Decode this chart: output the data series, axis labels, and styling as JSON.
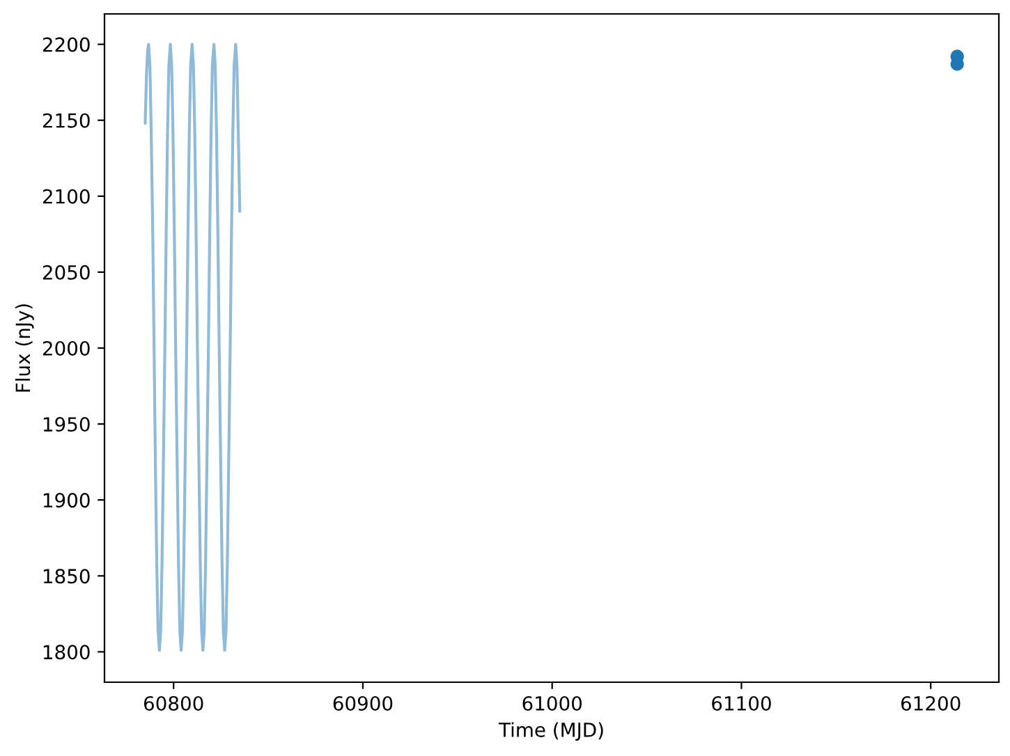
{
  "chart_data": {
    "type": "line",
    "xlabel": "Time (MJD)",
    "ylabel": "Flux (nJy)",
    "xlim": [
      60763.5,
      61236
    ],
    "xticks": [
      60800,
      60900,
      61000,
      61100,
      61200
    ],
    "ylim": [
      1780,
      2220
    ],
    "yticks": [
      1800,
      1850,
      1900,
      1950,
      2000,
      2050,
      2100,
      2150,
      2200
    ],
    "series": [
      {
        "color": "#8fbbd9",
        "marker": "none",
        "line_style": "solid",
        "x": [
          60785.0,
          60785.7,
          60786.3,
          60786.8,
          60787.5,
          60788.2,
          60789.0,
          60789.7,
          60790.4,
          60791.1,
          60791.8,
          60792.5,
          60793.2,
          60793.9,
          60794.6,
          60795.4,
          60796.1,
          60796.8,
          60797.5,
          60798.3,
          60799.0,
          60799.7,
          60800.4,
          60801.1,
          60801.9,
          60802.6,
          60803.3,
          60804.0,
          60804.7,
          60805.4,
          60806.1,
          60806.9,
          60807.6,
          60808.3,
          60809.0,
          60809.8,
          60810.5,
          60811.2,
          60811.9,
          60812.6,
          60813.4,
          60814.1,
          60814.8,
          60815.5,
          60816.2,
          60816.9,
          60817.6,
          60818.4,
          60819.1,
          60819.8,
          60820.5,
          60821.3,
          60822.0,
          60822.7,
          60823.4,
          60824.1,
          60824.9,
          60825.6,
          60826.3,
          60827.0,
          60827.7,
          60828.4,
          60829.1,
          60829.9,
          60830.6,
          60831.3,
          60832.0,
          60832.8,
          60833.5,
          60834.2,
          60835.0
        ],
        "values": [
          2148,
          2180,
          2196,
          2200,
          2186,
          2141,
          2076,
          2000,
          1923,
          1859,
          1814,
          1801,
          1814,
          1859,
          1923,
          2000,
          2076,
          2141,
          2186,
          2200,
          2186,
          2141,
          2076,
          2000,
          1923,
          1859,
          1814,
          1801,
          1814,
          1859,
          1923,
          2000,
          2076,
          2141,
          2186,
          2200,
          2186,
          2141,
          2076,
          2000,
          1923,
          1859,
          1814,
          1801,
          1814,
          1859,
          1923,
          2000,
          2076,
          2141,
          2186,
          2200,
          2186,
          2141,
          2076,
          2000,
          1923,
          1859,
          1814,
          1801,
          1814,
          1859,
          1923,
          2000,
          2076,
          2141,
          2186,
          2200,
          2186,
          2141,
          2090
        ]
      },
      {
        "type": "scatter",
        "color": "#1f77b4",
        "marker": "circle",
        "x": [
          61214,
          61214
        ],
        "values": [
          2192,
          2187
        ]
      }
    ]
  }
}
